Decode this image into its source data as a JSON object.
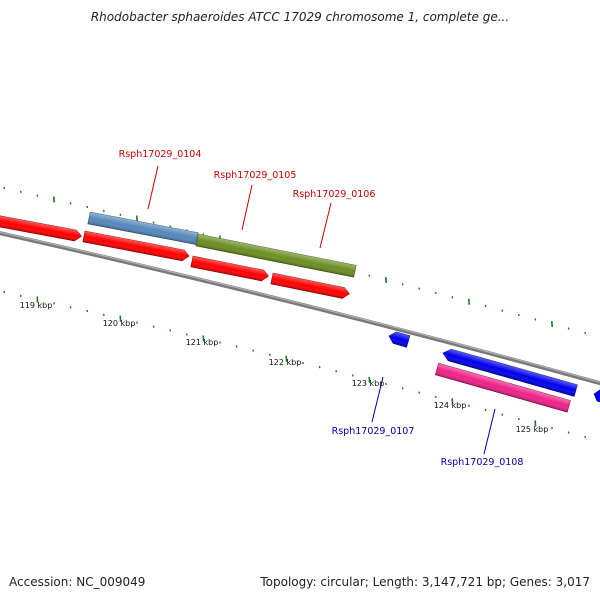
{
  "header": {
    "title": "Rhodobacter sphaeroides ATCC 17029 chromosome 1, complete ge..."
  },
  "footer": {
    "accession": "Accession: NC_009049",
    "topology": "Topology: circular; Length: 3,147,721 bp; Genes: 3,017"
  },
  "map": {
    "backbone_color": "#808080",
    "tick_color": "#1a7a1a",
    "position_labels": [
      "119 kbp",
      "120 kbp",
      "121 kbp",
      "122 kbp",
      "123 kbp",
      "124 kbp",
      "125 kbp"
    ],
    "genes": [
      {
        "id": "Rsph17029_0104",
        "label": "Rsph17029_0104",
        "strand": "+",
        "color": "#5588bb",
        "label_color": "#cc0000"
      },
      {
        "id": "Rsph17029_0105",
        "label": "Rsph17029_0105",
        "strand": "+",
        "color": "#6b8e23",
        "label_color": "#cc0000"
      },
      {
        "id": "Rsph17029_0106",
        "label": "Rsph17029_0106",
        "strand": "+",
        "color": "#ff0000",
        "label_color": "#cc0000"
      },
      {
        "id": "Rsph17029_0107",
        "label": "Rsph17029_0107",
        "strand": "-",
        "color": "#0000ee",
        "label_color": "#0000aa"
      },
      {
        "id": "Rsph17029_0108",
        "label": "Rsph17029_0108",
        "strand": "-",
        "color": "#ee2288",
        "label_color": "#0000aa"
      }
    ]
  }
}
